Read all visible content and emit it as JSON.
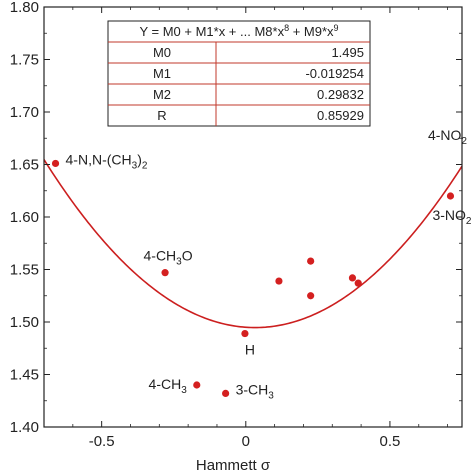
{
  "chart_data": {
    "type": "scatter",
    "xlabel": "Hammett σ",
    "ylabel": "",
    "xlim": [
      -0.7,
      0.75
    ],
    "ylim": [
      1.4,
      1.8
    ],
    "x_ticks": [
      -0.5,
      0,
      0.5
    ],
    "x_tick_labels": [
      "-0.5",
      "0",
      "0.5"
    ],
    "y_ticks": [
      1.4,
      1.45,
      1.5,
      1.55,
      1.6,
      1.65,
      1.7,
      1.75,
      1.8
    ],
    "y_tick_labels": [
      "1.40",
      "1.45",
      "1.50",
      "1.55",
      "1.60",
      "1.65",
      "1.70",
      "1.75",
      "1.80"
    ],
    "grid": false,
    "colors": {
      "points": "#d42020",
      "fit_line": "#cc1f1f",
      "table_border": "#c0392b",
      "axis": "#222222"
    },
    "series": [
      {
        "points": [
          {
            "x": -0.66,
            "y": 1.651
          },
          {
            "x": -0.28,
            "y": 1.547
          },
          {
            "x": -0.003,
            "y": 1.489
          },
          {
            "x": -0.17,
            "y": 1.44
          },
          {
            "x": -0.07,
            "y": 1.432
          },
          {
            "x": 0.115,
            "y": 1.539
          },
          {
            "x": 0.225,
            "y": 1.558
          },
          {
            "x": 0.225,
            "y": 1.525
          },
          {
            "x": 0.37,
            "y": 1.542
          },
          {
            "x": 0.39,
            "y": 1.537
          },
          {
            "x": 0.71,
            "y": 1.62
          }
        ]
      }
    ],
    "annotations": [
      {
        "base": "4-N,N-(CH",
        "sub": "3",
        "tail": ")",
        "sub2": "2",
        "x": -0.66,
        "y": 1.651,
        "anchor": "right"
      },
      {
        "base": "4-CH",
        "sub": "3",
        "tail": "O",
        "sub2": "",
        "x": -0.28,
        "y": 1.547,
        "anchor": "above"
      },
      {
        "base": "H",
        "sub": "",
        "tail": "",
        "sub2": "",
        "x": -0.003,
        "y": 1.489,
        "anchor": "below"
      },
      {
        "base": "4-CH",
        "sub": "3",
        "tail": "",
        "sub2": "",
        "x": -0.17,
        "y": 1.44,
        "anchor": "left"
      },
      {
        "base": "3-CH",
        "sub": "3",
        "tail": "",
        "sub2": "",
        "x": -0.07,
        "y": 1.432,
        "anchor": "right"
      },
      {
        "base": "4-NO",
        "sub": "2",
        "tail": "",
        "sub2": "",
        "x": 0.71,
        "y": 1.62,
        "anchor": "above-far"
      },
      {
        "base": "3-NO",
        "sub": "2",
        "tail": "",
        "sub2": "",
        "x": 0.71,
        "y": 1.62,
        "anchor": "below-left"
      }
    ],
    "fit": {
      "header": "Y = M0 + M1*x + ... M8*x^8 + M9*x^9",
      "rows": [
        {
          "name": "M0",
          "value": "1.495"
        },
        {
          "name": "M1",
          "value": "-0.019254"
        },
        {
          "name": "M2",
          "value": "0.29832"
        },
        {
          "name": "R",
          "value": "0.85929"
        }
      ],
      "coefficients": [
        1.495,
        -0.019254,
        0.29832
      ]
    }
  }
}
